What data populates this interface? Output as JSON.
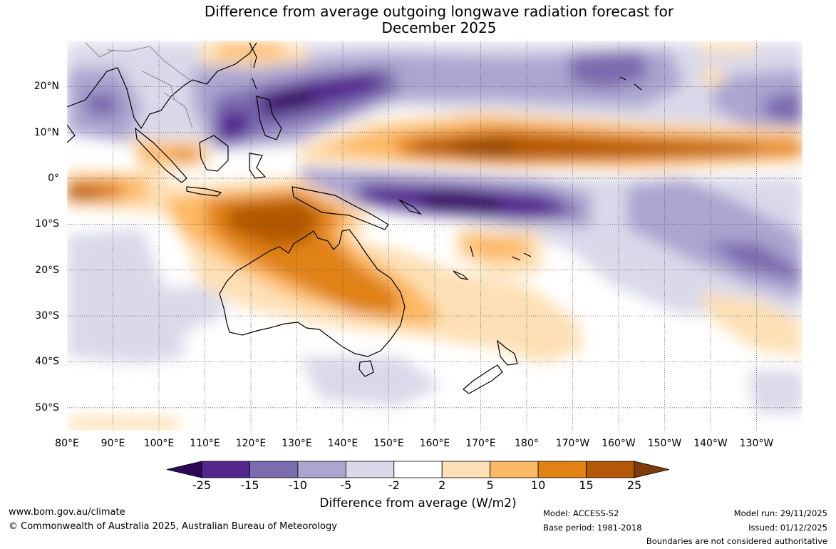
{
  "title": {
    "line1": "Difference from average outgoing longwave radiation forecast for",
    "line2": "December 2025"
  },
  "map": {
    "lon_labels": [
      "80°E",
      "90°E",
      "100°E",
      "110°E",
      "120°E",
      "130°E",
      "140°E",
      "150°E",
      "160°E",
      "170°E",
      "180°",
      "170°W",
      "160°W",
      "150°W",
      "140°W",
      "130°W"
    ],
    "lat_labels": [
      "20°N",
      "10°N",
      "0°",
      "10°S",
      "20°S",
      "30°S",
      "40°S",
      "50°S"
    ],
    "lon_values": [
      80,
      90,
      100,
      110,
      120,
      130,
      140,
      150,
      160,
      170,
      180,
      190,
      200,
      210,
      220,
      230
    ],
    "lat_values": [
      20,
      10,
      0,
      -10,
      -20,
      -30,
      -40,
      -50
    ],
    "lon_range": [
      80,
      240
    ],
    "lat_range": [
      -55,
      30
    ]
  },
  "colorbar": {
    "ticks": [
      "-25",
      "-15",
      "-10",
      "-5",
      "-2",
      "2",
      "5",
      "10",
      "15",
      "25"
    ],
    "colors": [
      "#2e0854",
      "#54278f",
      "#7b6baf",
      "#aba5d0",
      "#d9d9ea",
      "#ffffff",
      "#fee0b6",
      "#fdb863",
      "#e08214",
      "#b35806",
      "#7f3b08"
    ],
    "label": "Difference from average (W/m2)"
  },
  "footer": {
    "website": "www.bom.gov.au/climate",
    "copyright": "© Commonwealth of Australia 2025, Australian Bureau of Meteorology",
    "model": "Model: ACCESS-S2",
    "base_period": "Base period: 1981-2018",
    "model_run": "Model run: 29/11/2025",
    "issued": "Issued: 01/12/2025",
    "disclaimer": "Boundaries are not considered authoritative"
  }
}
